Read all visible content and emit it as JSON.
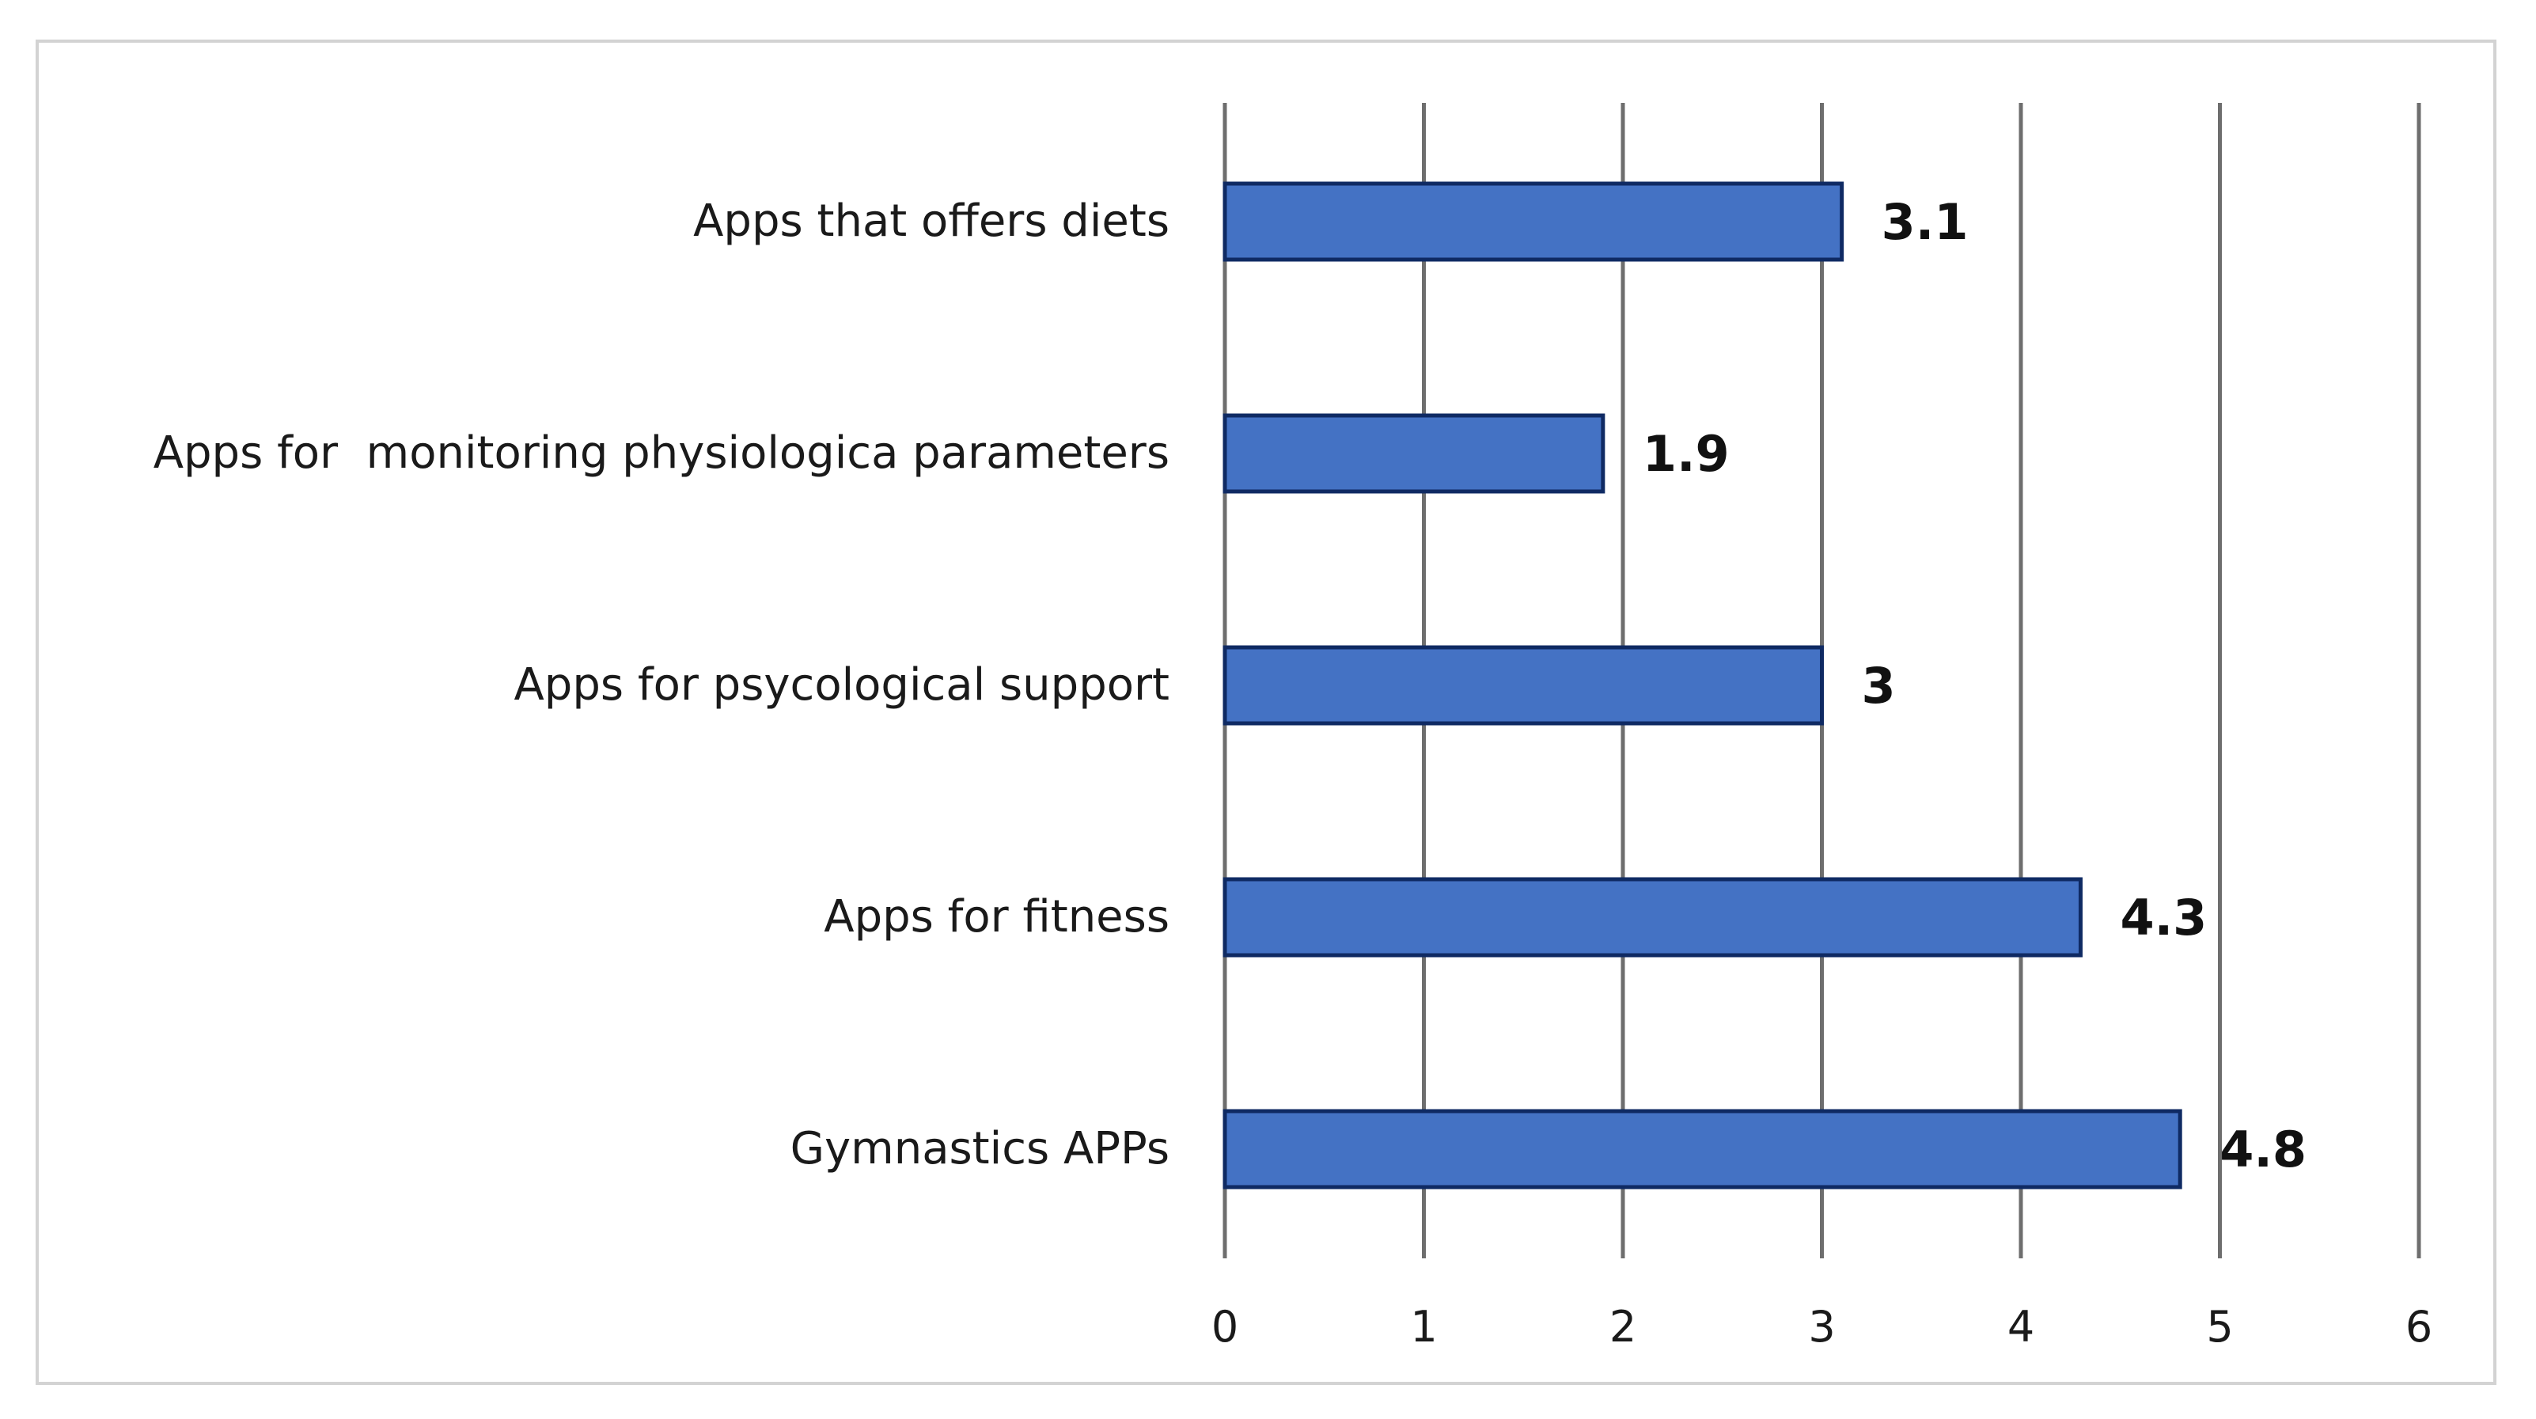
{
  "chart_data": {
    "type": "bar",
    "orientation": "horizontal",
    "categories": [
      "Apps that offers diets",
      "Apps for  monitoring physiologica parameters",
      "Apps for psycological support",
      "Apps for fitness",
      "Gymnastics APPs"
    ],
    "values": [
      3.1,
      1.9,
      3,
      4.3,
      4.8
    ],
    "data_labels": [
      "3.1",
      "1.9",
      "3",
      "4.3",
      "4.8"
    ],
    "title": "",
    "xlabel": "",
    "ylabel": "",
    "xlim": [
      0,
      6
    ],
    "x_ticks": [
      "0",
      "1",
      "2",
      "3",
      "4",
      "5",
      "6"
    ],
    "grid": true,
    "legend": "none",
    "colors": {
      "bar_fill": "#4472c4",
      "bar_edge": "#0f2a63",
      "gridline": "#6e6e6e"
    }
  }
}
